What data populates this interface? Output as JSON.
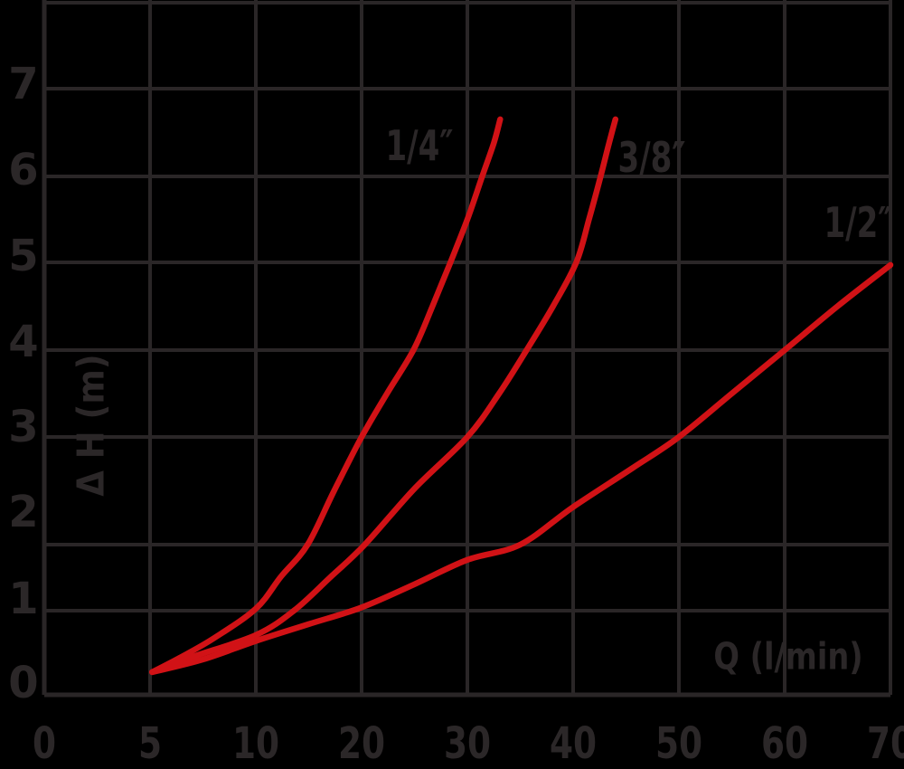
{
  "chart_data": {
    "type": "line",
    "title": "",
    "xlabel": "Q (l/min)",
    "ylabel": "Δ H (m)",
    "x_axis": {
      "tick_labels": [
        "0",
        "5",
        "10",
        "20",
        "30",
        "40",
        "50",
        "60",
        "70"
      ],
      "tick_values": [
        0,
        5,
        10,
        20,
        30,
        40,
        50,
        60,
        70
      ],
      "note": "ticks evenly spaced on axis despite non-uniform values"
    },
    "y_axis": {
      "tick_labels": [
        "0",
        "1",
        "2",
        "3",
        "4",
        "5",
        "6",
        "7"
      ],
      "tick_values": [
        0,
        1,
        2,
        3,
        4,
        5,
        6,
        7
      ],
      "range": [
        0,
        8
      ]
    },
    "grid": true,
    "legend": "inline curve labels",
    "colors": {
      "curve": "#d11216",
      "grid": "#2a2627",
      "text": "#2b2728",
      "background": "#000000"
    },
    "series": [
      {
        "name": "1/4″",
        "points": [
          [
            5.1,
            0.27
          ],
          [
            6.4,
            0.44
          ],
          [
            8,
            0.67
          ],
          [
            10,
            1.03
          ],
          [
            12.4,
            1.52
          ],
          [
            14.9,
            2.0
          ],
          [
            17.4,
            2.5
          ],
          [
            20,
            3.0
          ],
          [
            22.4,
            3.5
          ],
          [
            24.9,
            4.0
          ],
          [
            26.7,
            4.5
          ],
          [
            28.4,
            5.0
          ],
          [
            30,
            5.5
          ],
          [
            31.4,
            6.0
          ],
          [
            32.5,
            6.38
          ],
          [
            33.1,
            6.65
          ]
        ]
      },
      {
        "name": "3/8″",
        "points": [
          [
            5.1,
            0.27
          ],
          [
            7,
            0.45
          ],
          [
            10,
            0.71
          ],
          [
            13.6,
            1.0
          ],
          [
            17,
            1.5
          ],
          [
            20.3,
            2.0
          ],
          [
            25,
            2.52
          ],
          [
            30,
            3.0
          ],
          [
            33,
            3.5
          ],
          [
            35.6,
            4.0
          ],
          [
            38.1,
            4.5
          ],
          [
            40.3,
            5.0
          ],
          [
            41.5,
            5.5
          ],
          [
            42.6,
            6.0
          ],
          [
            43.4,
            6.38
          ],
          [
            44,
            6.65
          ]
        ]
      },
      {
        "name": "1/2″",
        "points": [
          [
            5.1,
            0.27
          ],
          [
            7.5,
            0.42
          ],
          [
            10,
            0.64
          ],
          [
            15,
            0.84
          ],
          [
            20,
            1.05
          ],
          [
            25,
            1.4
          ],
          [
            30,
            1.77
          ],
          [
            35,
            2.0
          ],
          [
            40,
            2.35
          ],
          [
            45.6,
            2.71
          ],
          [
            50,
            3.0
          ],
          [
            55,
            3.5
          ],
          [
            60,
            4.0
          ],
          [
            65,
            4.5
          ],
          [
            70,
            4.97
          ]
        ]
      }
    ]
  }
}
